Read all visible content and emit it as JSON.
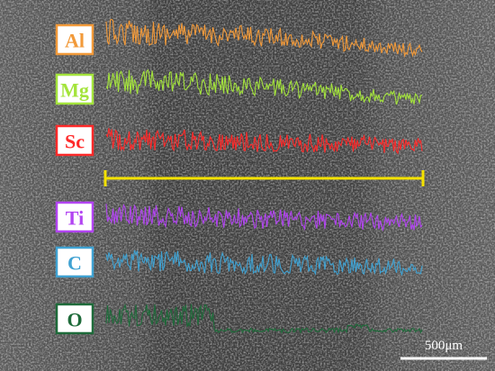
{
  "elements": [
    {
      "label": "Al",
      "color": "#f29a3a"
    },
    {
      "label": "Mg",
      "color": "#a4e43c"
    },
    {
      "label": "Sc",
      "color": "#ff2a2a"
    },
    {
      "label": "Ti",
      "color": "#b244f2"
    },
    {
      "label": "C",
      "color": "#40a2d2"
    },
    {
      "label": "O",
      "color": "#1e6b3a"
    }
  ],
  "line_color": "#f4e200",
  "scale_bar": "500μm"
}
